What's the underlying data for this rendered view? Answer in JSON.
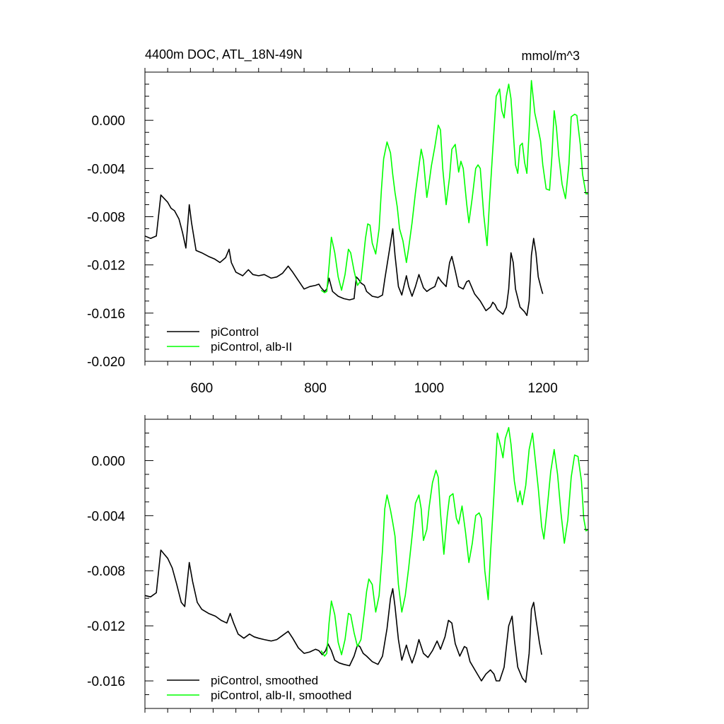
{
  "colors": {
    "piControl": "#000000",
    "alb_II": "#00ff00",
    "axis": "#000000"
  },
  "chart_data": [
    {
      "type": "line",
      "title": "4400m DOC, ATL_18N-49N",
      "units": "mmol/m^3",
      "xlim": [
        500,
        1280
      ],
      "ylim": [
        -0.02,
        0.004
      ],
      "xticks": [
        600,
        800,
        1000,
        1200
      ],
      "xtick_labels": [
        "600",
        "800",
        "1000",
        "1200"
      ],
      "yticks": [
        -0.02,
        -0.016,
        -0.012,
        -0.008,
        -0.004,
        0.0
      ],
      "ytick_labels": [
        "-0.020",
        "-0.016",
        "-0.012",
        "-0.008",
        "-0.004",
        "0.000"
      ],
      "grid": false,
      "legend_position": "bottom-left",
      "series": [
        {
          "name": "piControl",
          "color": "#000000",
          "x": [
            500,
            510,
            520,
            528,
            532,
            540,
            546,
            552,
            560,
            566,
            572,
            578,
            582,
            590,
            600,
            612,
            622,
            632,
            642,
            648,
            652,
            660,
            672,
            682,
            690,
            700,
            710,
            722,
            732,
            742,
            752,
            760,
            770,
            780,
            790,
            800,
            806,
            810,
            816,
            820,
            824,
            830,
            840,
            850,
            860,
            868,
            872,
            876,
            880,
            886,
            890,
            900,
            910,
            918,
            922,
            930,
            936,
            940,
            946,
            952,
            960,
            964,
            970,
            976,
            982,
            990,
            996,
            1002,
            1010,
            1016,
            1022,
            1030,
            1036,
            1040,
            1046,
            1052,
            1060,
            1066,
            1070,
            1080,
            1090,
            1100,
            1108,
            1112,
            1116,
            1120,
            1130,
            1136,
            1140,
            1144,
            1148,
            1152,
            1160,
            1168,
            1172,
            1176,
            1180,
            1184,
            1188,
            1192,
            1198,
            1200
          ],
          "y": [
            -0.0096,
            -0.0098,
            -0.0096,
            -0.0062,
            -0.0064,
            -0.0068,
            -0.0073,
            -0.0075,
            -0.0082,
            -0.0093,
            -0.0106,
            -0.007,
            -0.0085,
            -0.0108,
            -0.011,
            -0.0113,
            -0.0115,
            -0.0118,
            -0.0114,
            -0.0107,
            -0.0118,
            -0.0126,
            -0.0129,
            -0.0124,
            -0.0128,
            -0.0129,
            -0.0128,
            -0.0131,
            -0.013,
            -0.0127,
            -0.0121,
            -0.0126,
            -0.0133,
            -0.014,
            -0.0138,
            -0.0137,
            -0.0136,
            -0.0139,
            -0.0142,
            -0.014,
            -0.0131,
            -0.0142,
            -0.0146,
            -0.0148,
            -0.0149,
            -0.0148,
            -0.013,
            -0.0132,
            -0.0135,
            -0.0137,
            -0.0142,
            -0.0146,
            -0.0147,
            -0.0145,
            -0.0132,
            -0.0108,
            -0.009,
            -0.0112,
            -0.0138,
            -0.0145,
            -0.0129,
            -0.0138,
            -0.0146,
            -0.0138,
            -0.0128,
            -0.0139,
            -0.0142,
            -0.014,
            -0.0138,
            -0.013,
            -0.0134,
            -0.0138,
            -0.0118,
            -0.0113,
            -0.0125,
            -0.0138,
            -0.014,
            -0.0134,
            -0.0133,
            -0.0144,
            -0.015,
            -0.0158,
            -0.0155,
            -0.0151,
            -0.0153,
            -0.0157,
            -0.0161,
            -0.0155,
            -0.014,
            -0.011,
            -0.0118,
            -0.014,
            -0.0155,
            -0.0159,
            -0.0162,
            -0.015,
            -0.0112,
            -0.0098,
            -0.011,
            -0.013,
            -0.0141,
            -0.0144
          ]
        },
        {
          "name": "piControl, alb-II",
          "color": "#00ff00",
          "x": [
            810,
            816,
            820,
            824,
            828,
            834,
            840,
            846,
            852,
            858,
            862,
            868,
            874,
            880,
            884,
            888,
            892,
            896,
            900,
            906,
            912,
            916,
            920,
            926,
            932,
            936,
            940,
            944,
            948,
            954,
            960,
            964,
            970,
            976,
            982,
            986,
            990,
            996,
            1000,
            1004,
            1010,
            1016,
            1020,
            1024,
            1030,
            1036,
            1040,
            1046,
            1052,
            1056,
            1060,
            1066,
            1070,
            1076,
            1082,
            1086,
            1090,
            1096,
            1102,
            1106,
            1112,
            1118,
            1124,
            1128,
            1132,
            1136,
            1140,
            1144,
            1148,
            1152,
            1156,
            1160,
            1164,
            1168,
            1172,
            1176,
            1180,
            1186,
            1190,
            1196,
            1200,
            1206,
            1212,
            1216,
            1220,
            1224,
            1228,
            1234,
            1240,
            1246,
            1250,
            1256,
            1260,
            1266,
            1270,
            1276,
            1280
          ],
          "y": [
            -0.0141,
            -0.0143,
            -0.0142,
            -0.0121,
            -0.0097,
            -0.011,
            -0.013,
            -0.0141,
            -0.0128,
            -0.0107,
            -0.011,
            -0.0125,
            -0.0137,
            -0.0133,
            -0.0116,
            -0.0098,
            -0.0086,
            -0.0087,
            -0.0102,
            -0.0111,
            -0.009,
            -0.0058,
            -0.0032,
            -0.0018,
            -0.0027,
            -0.0045,
            -0.006,
            -0.0072,
            -0.009,
            -0.01,
            -0.0118,
            -0.0106,
            -0.0085,
            -0.006,
            -0.0038,
            -0.0024,
            -0.0033,
            -0.0064,
            -0.0052,
            -0.0038,
            -0.0022,
            -0.0004,
            -0.0008,
            -0.004,
            -0.007,
            -0.0047,
            -0.0024,
            -0.002,
            -0.0043,
            -0.0034,
            -0.004,
            -0.0069,
            -0.0085,
            -0.0064,
            -0.004,
            -0.0037,
            -0.004,
            -0.0078,
            -0.0104,
            -0.007,
            -0.0024,
            0.002,
            0.0026,
            0.0008,
            0.0002,
            0.002,
            0.003,
            0.0018,
            -0.001,
            -0.0037,
            -0.0044,
            -0.0021,
            -0.0019,
            -0.0035,
            -0.0044,
            -0.0009,
            0.0033,
            0.0006,
            -0.0003,
            -0.0017,
            -0.0037,
            -0.0057,
            -0.0058,
            -0.003,
            0.0008,
            -0.0006,
            -0.0029,
            -0.0053,
            -0.0065,
            -0.0036,
            0.0003,
            0.0005,
            0.0004,
            -0.002,
            -0.0045,
            -0.0061,
            -0.0061
          ]
        }
      ]
    },
    {
      "type": "line",
      "title": "",
      "xlim": [
        500,
        1280
      ],
      "ylim": [
        -0.018,
        0.003
      ],
      "xticks": [
        600,
        800,
        1000,
        1200
      ],
      "yticks": [
        -0.016,
        -0.012,
        -0.008,
        -0.004,
        0.0
      ],
      "ytick_labels": [
        "-0.016",
        "-0.012",
        "-0.008",
        "-0.004",
        "0.000"
      ],
      "grid": false,
      "legend_position": "bottom-left",
      "series": [
        {
          "name": "piControl, smoothed",
          "color": "#000000",
          "x": [
            500,
            510,
            520,
            528,
            534,
            540,
            548,
            556,
            564,
            570,
            578,
            584,
            592,
            600,
            612,
            624,
            634,
            644,
            650,
            656,
            664,
            674,
            684,
            692,
            700,
            710,
            722,
            732,
            742,
            752,
            760,
            770,
            780,
            790,
            800,
            806,
            812,
            818,
            822,
            828,
            834,
            842,
            850,
            860,
            868,
            874,
            878,
            884,
            890,
            900,
            910,
            918,
            926,
            932,
            936,
            940,
            946,
            952,
            960,
            964,
            970,
            976,
            982,
            990,
            998,
            1006,
            1014,
            1020,
            1028,
            1034,
            1040,
            1046,
            1054,
            1062,
            1066,
            1072,
            1082,
            1092,
            1100,
            1108,
            1114,
            1118,
            1124,
            1132,
            1140,
            1146,
            1150,
            1156,
            1164,
            1170,
            1176,
            1180,
            1184,
            1188,
            1194,
            1198
          ],
          "y": [
            -0.0098,
            -0.0099,
            -0.0096,
            -0.0065,
            -0.0068,
            -0.0071,
            -0.0078,
            -0.009,
            -0.0103,
            -0.0106,
            -0.0074,
            -0.0088,
            -0.0103,
            -0.0108,
            -0.0111,
            -0.0113,
            -0.0116,
            -0.0118,
            -0.0111,
            -0.0118,
            -0.0126,
            -0.0129,
            -0.0126,
            -0.0128,
            -0.0129,
            -0.013,
            -0.0131,
            -0.013,
            -0.0127,
            -0.0124,
            -0.0129,
            -0.0136,
            -0.014,
            -0.0139,
            -0.0137,
            -0.0138,
            -0.0141,
            -0.0138,
            -0.0133,
            -0.0138,
            -0.0145,
            -0.0147,
            -0.0148,
            -0.0149,
            -0.0142,
            -0.0134,
            -0.0135,
            -0.014,
            -0.0142,
            -0.0146,
            -0.0148,
            -0.0142,
            -0.0122,
            -0.01,
            -0.0093,
            -0.0106,
            -0.013,
            -0.0145,
            -0.0134,
            -0.014,
            -0.0147,
            -0.014,
            -0.013,
            -0.014,
            -0.0143,
            -0.0138,
            -0.0131,
            -0.0137,
            -0.0128,
            -0.0116,
            -0.0118,
            -0.0133,
            -0.0142,
            -0.0135,
            -0.0136,
            -0.0146,
            -0.0153,
            -0.016,
            -0.0155,
            -0.0152,
            -0.0155,
            -0.016,
            -0.016,
            -0.015,
            -0.012,
            -0.0113,
            -0.013,
            -0.015,
            -0.0158,
            -0.0161,
            -0.014,
            -0.0108,
            -0.0103,
            -0.0115,
            -0.0132,
            -0.0141
          ]
        },
        {
          "name": "piControl, alb-II, smoothed",
          "color": "#00ff00",
          "x": [
            810,
            816,
            820,
            824,
            828,
            834,
            840,
            846,
            852,
            858,
            862,
            868,
            874,
            880,
            886,
            890,
            894,
            900,
            906,
            912,
            918,
            922,
            926,
            932,
            936,
            940,
            946,
            952,
            958,
            964,
            970,
            976,
            982,
            986,
            990,
            996,
            1000,
            1006,
            1012,
            1016,
            1020,
            1026,
            1032,
            1036,
            1042,
            1048,
            1052,
            1058,
            1064,
            1070,
            1076,
            1082,
            1088,
            1092,
            1098,
            1104,
            1108,
            1114,
            1120,
            1126,
            1130,
            1134,
            1140,
            1144,
            1150,
            1156,
            1160,
            1164,
            1170,
            1176,
            1182,
            1186,
            1192,
            1198,
            1202,
            1208,
            1214,
            1220,
            1226,
            1232,
            1238,
            1244,
            1250,
            1256,
            1262,
            1268,
            1272,
            1276,
            1280
          ],
          "y": [
            -0.0138,
            -0.0142,
            -0.014,
            -0.0118,
            -0.0102,
            -0.0112,
            -0.0132,
            -0.0141,
            -0.013,
            -0.0111,
            -0.0112,
            -0.0125,
            -0.0135,
            -0.013,
            -0.011,
            -0.0095,
            -0.0086,
            -0.009,
            -0.011,
            -0.0098,
            -0.0065,
            -0.0035,
            -0.0025,
            -0.0036,
            -0.0045,
            -0.0055,
            -0.009,
            -0.011,
            -0.0098,
            -0.0078,
            -0.0055,
            -0.0031,
            -0.0025,
            -0.0035,
            -0.0058,
            -0.005,
            -0.0034,
            -0.0016,
            -0.0007,
            -0.0012,
            -0.0038,
            -0.0068,
            -0.004,
            -0.0026,
            -0.0024,
            -0.0042,
            -0.0046,
            -0.0033,
            -0.0052,
            -0.0074,
            -0.006,
            -0.004,
            -0.0038,
            -0.0042,
            -0.008,
            -0.0101,
            -0.0068,
            -0.0025,
            0.002,
            0.001,
            0.0002,
            0.0016,
            0.0024,
            0.0012,
            -0.0015,
            -0.003,
            -0.0022,
            -0.0032,
            -0.0018,
            0.0008,
            0.002,
            0.0004,
            -0.002,
            -0.0048,
            -0.0057,
            -0.0034,
            -0.0008,
            0.0008,
            -0.001,
            -0.0038,
            -0.006,
            -0.0043,
            -0.0012,
            0.0004,
            0.0003,
            -0.0015,
            -0.0042,
            -0.0051,
            -0.005
          ]
        }
      ]
    }
  ]
}
